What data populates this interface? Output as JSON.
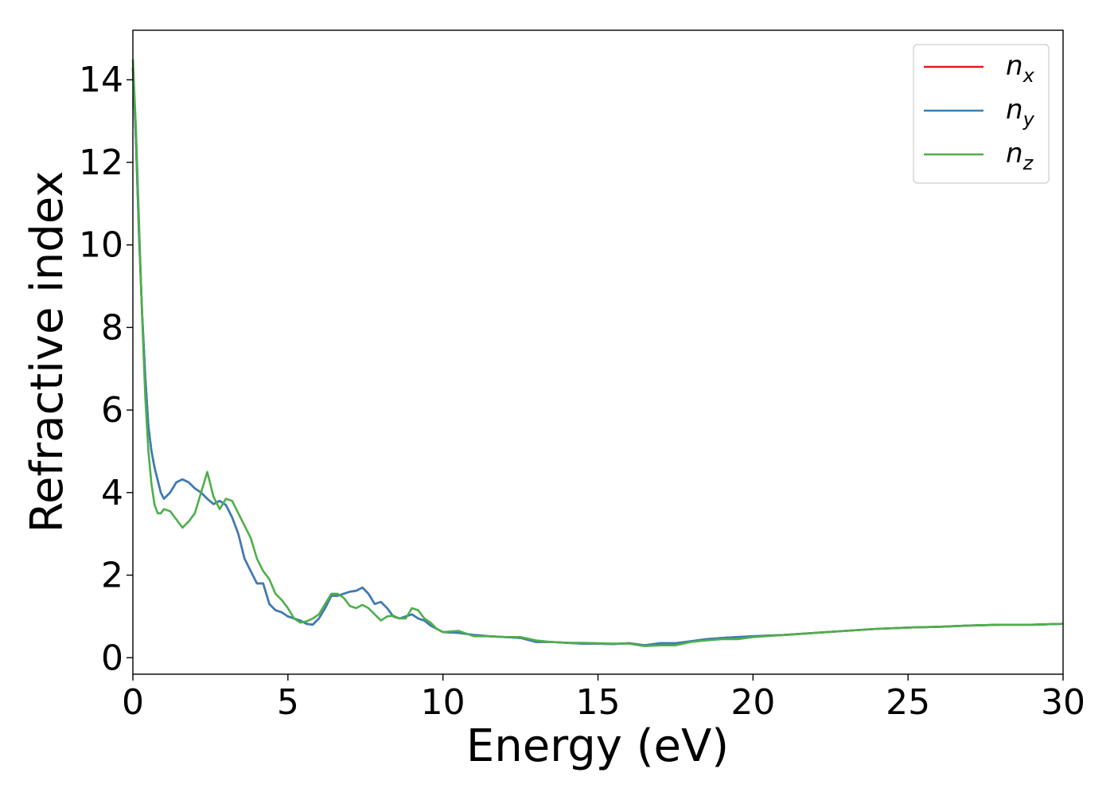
{
  "chart_data": {
    "type": "line",
    "xlabel": "Energy (eV)",
    "ylabel": "Refractive index",
    "xlim": [
      0,
      30
    ],
    "ylim": [
      -0.4,
      15.2
    ],
    "xticks": [
      0,
      5,
      10,
      15,
      20,
      25,
      30
    ],
    "yticks": [
      0,
      2,
      4,
      6,
      8,
      10,
      12,
      14
    ],
    "grid": false,
    "legend_position": "top-right",
    "series": [
      {
        "name": "n_x",
        "legend_base": "n",
        "legend_sub": "x",
        "color": "#e41a1c",
        "x": [
          0,
          0.1,
          0.2,
          0.3,
          0.4,
          0.5,
          0.6,
          0.7,
          0.8,
          0.9,
          1.0,
          1.2,
          1.4,
          1.6,
          1.8,
          2.0,
          2.2,
          2.4,
          2.6,
          2.8,
          3.0,
          3.2,
          3.4,
          3.6,
          3.8,
          4.0,
          4.2,
          4.4,
          4.6,
          4.8,
          5.0,
          5.2,
          5.4,
          5.6,
          5.8,
          6.0,
          6.2,
          6.4,
          6.6,
          6.8,
          7.0,
          7.2,
          7.4,
          7.6,
          7.8,
          8.0,
          8.2,
          8.4,
          8.6,
          8.8,
          9.0,
          9.2,
          9.4,
          9.6,
          9.8,
          10.0,
          10.5,
          11.0,
          11.5,
          12.0,
          12.5,
          13.0,
          13.5,
          14.0,
          14.5,
          15.0,
          15.5,
          16.0,
          16.5,
          17.0,
          17.5,
          18.0,
          18.5,
          19.0,
          19.5,
          20.0,
          21.0,
          22.0,
          23.0,
          24.0,
          25.0,
          26.0,
          27.0,
          28.0,
          29.0,
          30.0
        ],
        "y": [
          14.3,
          12.5,
          10.2,
          8.3,
          6.8,
          5.6,
          5.0,
          4.6,
          4.3,
          4.0,
          3.85,
          4.0,
          4.25,
          4.32,
          4.25,
          4.1,
          4.0,
          3.85,
          3.72,
          3.8,
          3.7,
          3.4,
          3.0,
          2.4,
          2.1,
          1.8,
          1.8,
          1.3,
          1.15,
          1.1,
          1.0,
          0.95,
          0.9,
          0.82,
          0.8,
          0.95,
          1.2,
          1.5,
          1.5,
          1.55,
          1.6,
          1.62,
          1.7,
          1.55,
          1.3,
          1.35,
          1.2,
          1.0,
          0.95,
          1.0,
          1.05,
          0.95,
          0.9,
          0.78,
          0.7,
          0.62,
          0.6,
          0.55,
          0.52,
          0.5,
          0.48,
          0.38,
          0.38,
          0.36,
          0.34,
          0.34,
          0.33,
          0.35,
          0.3,
          0.35,
          0.35,
          0.4,
          0.45,
          0.48,
          0.5,
          0.52,
          0.55,
          0.6,
          0.65,
          0.7,
          0.73,
          0.75,
          0.78,
          0.8,
          0.8,
          0.82
        ]
      },
      {
        "name": "n_y",
        "legend_base": "n",
        "legend_sub": "y",
        "color": "#377eb8",
        "x": [
          0,
          0.1,
          0.2,
          0.3,
          0.4,
          0.5,
          0.6,
          0.7,
          0.8,
          0.9,
          1.0,
          1.2,
          1.4,
          1.6,
          1.8,
          2.0,
          2.2,
          2.4,
          2.6,
          2.8,
          3.0,
          3.2,
          3.4,
          3.6,
          3.8,
          4.0,
          4.2,
          4.4,
          4.6,
          4.8,
          5.0,
          5.2,
          5.4,
          5.6,
          5.8,
          6.0,
          6.2,
          6.4,
          6.6,
          6.8,
          7.0,
          7.2,
          7.4,
          7.6,
          7.8,
          8.0,
          8.2,
          8.4,
          8.6,
          8.8,
          9.0,
          9.2,
          9.4,
          9.6,
          9.8,
          10.0,
          10.5,
          11.0,
          11.5,
          12.0,
          12.5,
          13.0,
          13.5,
          14.0,
          14.5,
          15.0,
          15.5,
          16.0,
          16.5,
          17.0,
          17.5,
          18.0,
          18.5,
          19.0,
          19.5,
          20.0,
          21.0,
          22.0,
          23.0,
          24.0,
          25.0,
          26.0,
          27.0,
          28.0,
          29.0,
          30.0
        ],
        "y": [
          14.3,
          12.5,
          10.2,
          8.3,
          6.8,
          5.6,
          5.0,
          4.6,
          4.3,
          4.0,
          3.85,
          4.0,
          4.25,
          4.32,
          4.25,
          4.1,
          4.0,
          3.85,
          3.72,
          3.8,
          3.7,
          3.4,
          3.0,
          2.4,
          2.1,
          1.8,
          1.8,
          1.3,
          1.15,
          1.1,
          1.0,
          0.95,
          0.9,
          0.82,
          0.8,
          0.95,
          1.2,
          1.5,
          1.5,
          1.55,
          1.6,
          1.62,
          1.7,
          1.55,
          1.3,
          1.35,
          1.2,
          1.0,
          0.95,
          1.0,
          1.05,
          0.95,
          0.9,
          0.78,
          0.7,
          0.62,
          0.6,
          0.55,
          0.52,
          0.5,
          0.48,
          0.38,
          0.38,
          0.36,
          0.34,
          0.34,
          0.33,
          0.35,
          0.3,
          0.35,
          0.35,
          0.4,
          0.45,
          0.48,
          0.5,
          0.52,
          0.55,
          0.6,
          0.65,
          0.7,
          0.73,
          0.75,
          0.78,
          0.8,
          0.8,
          0.82
        ]
      },
      {
        "name": "n_z",
        "legend_base": "n",
        "legend_sub": "z",
        "color": "#4daf4a",
        "x": [
          0,
          0.1,
          0.2,
          0.3,
          0.4,
          0.5,
          0.6,
          0.7,
          0.8,
          0.9,
          1.0,
          1.2,
          1.4,
          1.6,
          1.8,
          2.0,
          2.2,
          2.4,
          2.6,
          2.8,
          3.0,
          3.2,
          3.4,
          3.6,
          3.8,
          4.0,
          4.2,
          4.4,
          4.6,
          4.8,
          5.0,
          5.2,
          5.4,
          5.6,
          5.8,
          6.0,
          6.2,
          6.4,
          6.6,
          6.8,
          7.0,
          7.2,
          7.4,
          7.6,
          7.8,
          8.0,
          8.2,
          8.4,
          8.6,
          8.8,
          9.0,
          9.2,
          9.4,
          9.6,
          9.8,
          10.0,
          10.5,
          11.0,
          11.5,
          12.0,
          12.5,
          13.0,
          13.5,
          14.0,
          14.5,
          15.0,
          15.5,
          16.0,
          16.5,
          17.0,
          17.5,
          18.0,
          18.5,
          19.0,
          19.5,
          20.0,
          21.0,
          22.0,
          23.0,
          24.0,
          25.0,
          26.0,
          27.0,
          28.0,
          29.0,
          30.0
        ],
        "y": [
          14.5,
          12.8,
          10.5,
          8.2,
          6.3,
          5.0,
          4.2,
          3.7,
          3.5,
          3.5,
          3.6,
          3.55,
          3.35,
          3.15,
          3.3,
          3.5,
          4.0,
          4.5,
          3.9,
          3.6,
          3.85,
          3.8,
          3.5,
          3.2,
          2.9,
          2.4,
          2.1,
          1.9,
          1.55,
          1.4,
          1.2,
          0.95,
          0.85,
          0.88,
          0.95,
          1.05,
          1.3,
          1.55,
          1.55,
          1.45,
          1.25,
          1.2,
          1.28,
          1.2,
          1.05,
          0.9,
          1.0,
          1.02,
          0.95,
          0.95,
          1.2,
          1.15,
          0.95,
          0.85,
          0.7,
          0.62,
          0.65,
          0.52,
          0.52,
          0.5,
          0.5,
          0.42,
          0.38,
          0.36,
          0.36,
          0.35,
          0.34,
          0.34,
          0.28,
          0.3,
          0.3,
          0.38,
          0.42,
          0.45,
          0.45,
          0.5,
          0.55,
          0.6,
          0.65,
          0.7,
          0.73,
          0.75,
          0.78,
          0.8,
          0.8,
          0.82
        ]
      }
    ]
  }
}
